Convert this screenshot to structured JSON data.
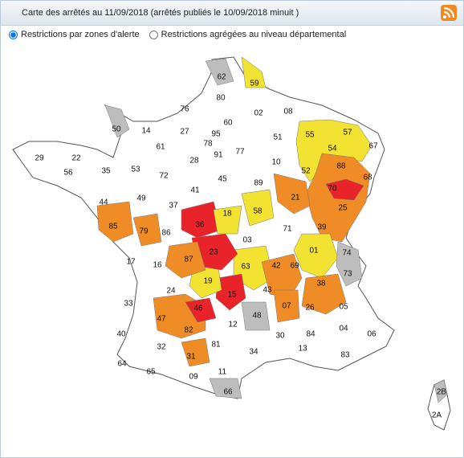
{
  "header": {
    "title": "Carte des arrêtés au 11/09/2018 (arrêtés publiés le 10/09/2018 minuit )"
  },
  "options": [
    {
      "label": "Restrictions par zones d'alerte",
      "selected": true
    },
    {
      "label": "Restrictions agrégées au niveau départemental",
      "selected": false
    }
  ],
  "departments": [
    "62",
    "59",
    "80",
    "76",
    "02",
    "08",
    "60",
    "50",
    "14",
    "27",
    "95",
    "78",
    "51",
    "55",
    "57",
    "67",
    "54",
    "29",
    "22",
    "61",
    "91",
    "77",
    "35",
    "56",
    "53",
    "72",
    "28",
    "10",
    "52",
    "88",
    "68",
    "89",
    "45",
    "44",
    "49",
    "37",
    "41",
    "21",
    "70",
    "25",
    "85",
    "79",
    "86",
    "36",
    "18",
    "58",
    "39",
    "71",
    "03",
    "01",
    "74",
    "17",
    "16",
    "87",
    "23",
    "63",
    "42",
    "69",
    "73",
    "24",
    "19",
    "15",
    "43",
    "38",
    "33",
    "46",
    "07",
    "26",
    "05",
    "47",
    "82",
    "12",
    "48",
    "40",
    "30",
    "84",
    "04",
    "06",
    "32",
    "81",
    "34",
    "13",
    "83",
    "31",
    "64",
    "65",
    "09",
    "11",
    "66",
    "2B",
    "2A"
  ]
}
